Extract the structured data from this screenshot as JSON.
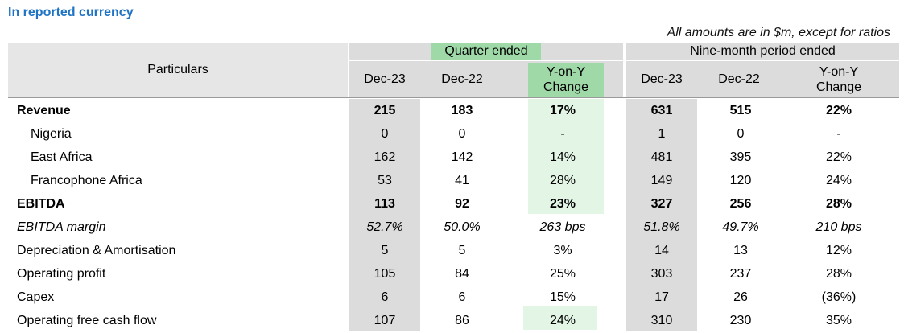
{
  "heading": "In reported currency",
  "note": "All amounts are in $m, except for ratios",
  "header": {
    "particulars": "Particulars",
    "quarter_group": "Quarter ended",
    "ninemonth_group": "Nine-month period ended",
    "q_cols": [
      "Dec-23",
      "Dec-22",
      "Y-on-Y\nChange"
    ],
    "n_cols": [
      "Dec-23",
      "Dec-22",
      "Y-on-Y\nChange"
    ]
  },
  "rows": [
    {
      "label": "Revenue",
      "style": "bold",
      "indent": false,
      "values": [
        "215",
        "183",
        "17%",
        "631",
        "515",
        "22%"
      ]
    },
    {
      "label": "Nigeria",
      "style": "normal",
      "indent": true,
      "values": [
        "0",
        "0",
        "-",
        "1",
        "0",
        "-"
      ]
    },
    {
      "label": "East Africa",
      "style": "normal",
      "indent": true,
      "values": [
        "162",
        "142",
        "14%",
        "481",
        "395",
        "22%"
      ]
    },
    {
      "label": "Francophone Africa",
      "style": "normal",
      "indent": true,
      "values": [
        "53",
        "41",
        "28%",
        "149",
        "120",
        "24%"
      ]
    },
    {
      "label": "EBITDA",
      "style": "bold",
      "indent": false,
      "values": [
        "113",
        "92",
        "23%",
        "327",
        "256",
        "28%"
      ]
    },
    {
      "label": "EBITDA margin",
      "style": "italic",
      "indent": false,
      "values": [
        "52.7%",
        "50.0%",
        "263 bps",
        "51.8%",
        "49.7%",
        "210 bps"
      ]
    },
    {
      "label": "Depreciation & Amortisation",
      "style": "normal",
      "indent": false,
      "values": [
        "5",
        "5",
        "3%",
        "14",
        "13",
        "12%"
      ]
    },
    {
      "label": "Operating profit",
      "style": "normal",
      "indent": false,
      "values": [
        "105",
        "84",
        "25%",
        "303",
        "237",
        "28%"
      ]
    },
    {
      "label": "Capex",
      "style": "normal",
      "indent": false,
      "values": [
        "6",
        "6",
        "15%",
        "17",
        "26",
        "(36%)"
      ]
    },
    {
      "label": "Operating free cash flow",
      "style": "normal",
      "indent": false,
      "values": [
        "107",
        "86",
        "24%",
        "310",
        "230",
        "35%"
      ]
    }
  ],
  "colors": {
    "heading": "#1f73c4",
    "header_gray": "#dcdcdc",
    "highlight_green": "#9fd9a8",
    "light_green": "#e3f6e6"
  }
}
